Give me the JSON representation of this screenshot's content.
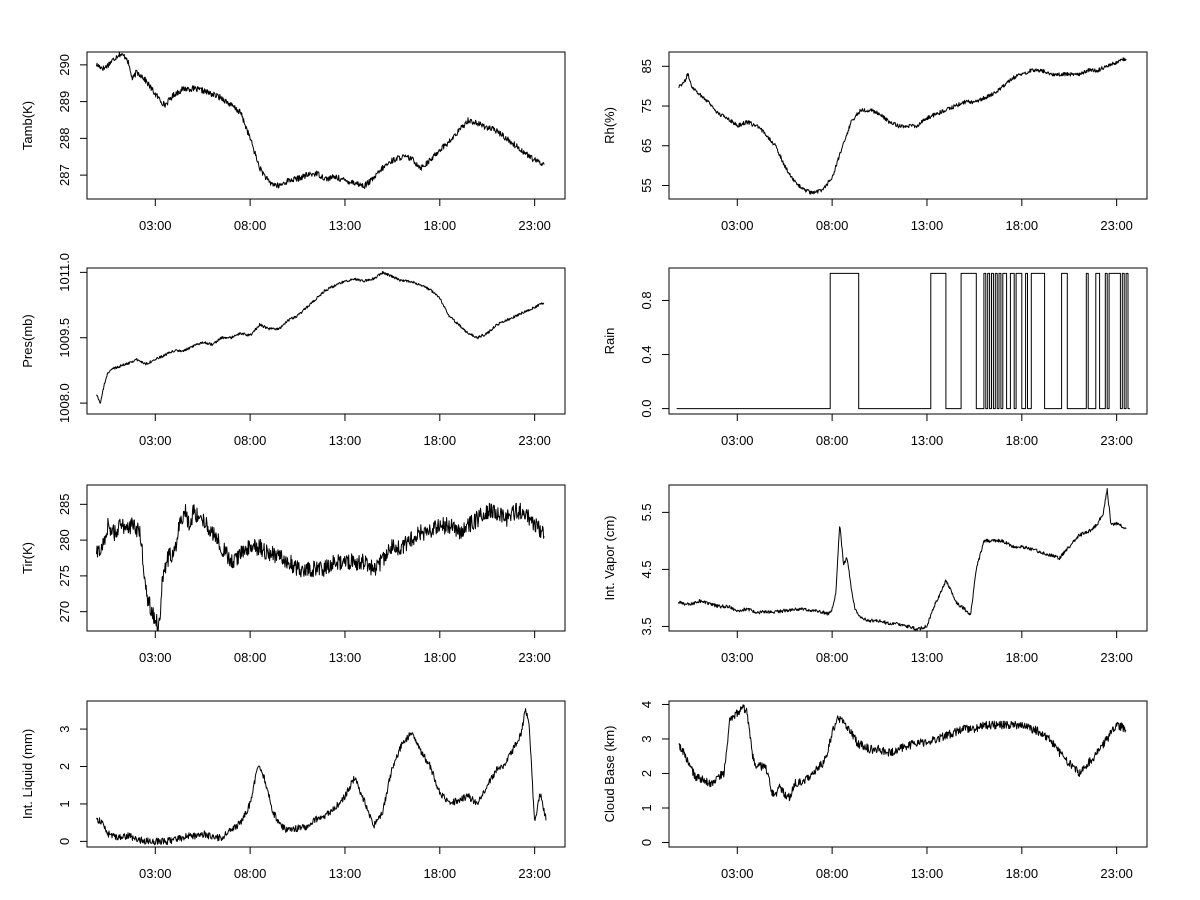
{
  "chart_data": [
    {
      "type": "line",
      "ylabel": "Tamb(K)",
      "xlabel": "",
      "xticks": [
        "03:00",
        "08:00",
        "13:00",
        "18:00",
        "23:00"
      ],
      "yticks": [
        287,
        288,
        289,
        290
      ],
      "ylim": [
        286.35,
        290.35
      ],
      "noise": 0.08,
      "series": [
        {
          "x": [
            -0.1,
            0.3,
            0.7,
            1.1,
            1.5,
            1.8,
            2.0,
            2.3,
            2.6,
            3.0,
            3.5,
            4.0,
            4.5,
            5.0,
            5.5,
            6.0,
            6.5,
            7.0,
            7.5,
            8.0,
            8.5,
            9.0,
            9.5,
            10.0,
            10.5,
            11.0,
            11.5,
            12.0,
            12.5,
            13.0,
            13.5,
            14.0,
            14.5,
            15.0,
            15.5,
            16.0,
            16.5,
            17.0,
            17.5,
            18.0,
            18.5,
            19.0,
            19.5,
            20.0,
            20.5,
            21.0,
            21.5,
            22.0,
            22.5,
            23.0,
            23.5
          ],
          "values": [
            290.0,
            289.9,
            290.1,
            290.3,
            290.2,
            289.6,
            289.8,
            289.7,
            289.5,
            289.2,
            288.9,
            289.2,
            289.35,
            289.35,
            289.3,
            289.2,
            289.1,
            288.9,
            288.7,
            288.0,
            287.2,
            286.8,
            286.7,
            286.85,
            286.9,
            287.0,
            287.05,
            286.9,
            286.95,
            286.85,
            286.8,
            286.7,
            286.9,
            287.2,
            287.4,
            287.5,
            287.45,
            287.2,
            287.4,
            287.7,
            287.9,
            288.2,
            288.5,
            288.4,
            288.3,
            288.2,
            288.0,
            287.8,
            287.6,
            287.4,
            287.3
          ]
        }
      ]
    },
    {
      "type": "line",
      "ylabel": "Rh(%)",
      "xlabel": "",
      "xticks": [
        "03:00",
        "08:00",
        "13:00",
        "18:00",
        "23:00"
      ],
      "yticks": [
        55,
        65,
        75,
        85
      ],
      "ylim": [
        51.6,
        88.6
      ],
      "noise": 0.5,
      "series": [
        {
          "x": [
            -0.1,
            0.2,
            0.4,
            0.6,
            1.0,
            1.5,
            2.0,
            2.5,
            3.0,
            3.5,
            4.0,
            4.5,
            5.0,
            5.5,
            6.0,
            6.5,
            7.0,
            7.5,
            8.0,
            8.5,
            9.0,
            9.5,
            10.0,
            10.5,
            11.0,
            11.5,
            12.0,
            12.5,
            13.0,
            13.5,
            14.0,
            14.5,
            15.0,
            15.5,
            16.0,
            16.5,
            17.0,
            17.5,
            18.0,
            18.5,
            19.0,
            19.5,
            20.0,
            20.5,
            21.0,
            21.5,
            22.0,
            22.5,
            23.0,
            23.5
          ],
          "values": [
            80,
            81,
            83,
            80,
            78,
            76,
            73,
            72,
            70,
            71,
            70,
            68,
            65,
            60,
            56,
            54,
            53,
            54,
            57,
            64,
            71,
            74,
            74,
            73,
            71,
            70,
            70,
            70,
            72,
            73,
            74,
            75,
            76,
            76,
            77,
            78,
            80,
            82,
            83,
            84,
            84,
            83,
            83,
            83,
            83,
            84,
            84,
            85,
            86,
            87
          ]
        }
      ]
    },
    {
      "type": "line",
      "ylabel": "Pres(mb)",
      "xlabel": "",
      "xticks": [
        "03:00",
        "08:00",
        "13:00",
        "18:00",
        "23:00"
      ],
      "yticks": [
        "1008.0",
        "1009.5",
        "1011.0"
      ],
      "ylim": [
        1007.75,
        1011.1
      ],
      "noise": 0.03,
      "series": [
        {
          "x": [
            -0.1,
            0.1,
            0.3,
            0.5,
            0.8,
            1.5,
            2.0,
            2.5,
            3.0,
            3.5,
            4.0,
            4.5,
            5.0,
            5.5,
            6.0,
            6.5,
            7.0,
            7.5,
            8.0,
            8.5,
            9.0,
            9.5,
            10.0,
            10.5,
            11.0,
            11.5,
            12.0,
            12.5,
            13.0,
            13.5,
            14.0,
            14.5,
            15.0,
            15.5,
            16.0,
            16.5,
            17.0,
            17.5,
            18.0,
            18.5,
            19.0,
            19.5,
            20.0,
            20.5,
            21.0,
            21.5,
            22.0,
            22.5,
            23.0,
            23.5
          ],
          "values": [
            1008.2,
            1008.0,
            1008.4,
            1008.7,
            1008.8,
            1008.9,
            1009.0,
            1008.9,
            1009.0,
            1009.1,
            1009.2,
            1009.2,
            1009.3,
            1009.4,
            1009.35,
            1009.5,
            1009.5,
            1009.6,
            1009.55,
            1009.8,
            1009.7,
            1009.7,
            1009.9,
            1010.0,
            1010.2,
            1010.4,
            1010.6,
            1010.7,
            1010.8,
            1010.85,
            1010.8,
            1010.85,
            1011.0,
            1010.9,
            1010.8,
            1010.8,
            1010.7,
            1010.6,
            1010.4,
            1010.0,
            1009.8,
            1009.6,
            1009.5,
            1009.6,
            1009.8,
            1009.9,
            1010.0,
            1010.1,
            1010.2,
            1010.3
          ]
        }
      ]
    },
    {
      "type": "line",
      "ylabel": "Rain",
      "xlabel": "",
      "xticks": [
        "03:00",
        "08:00",
        "13:00",
        "18:00",
        "23:00"
      ],
      "yticks": [
        "0.0",
        "0.4",
        "0.8"
      ],
      "ylim": [
        -0.04,
        1.04
      ],
      "noise": 0,
      "step": true,
      "series": [
        {
          "x": [
            -0.2,
            7.9,
            7.9,
            9.4,
            9.4,
            13.2,
            13.2,
            14.0,
            14.0,
            14.8,
            14.8,
            15.6,
            15.6,
            16.0,
            16.0,
            16.1,
            16.1,
            16.2,
            16.2,
            16.3,
            16.3,
            16.4,
            16.4,
            16.5,
            16.5,
            16.6,
            16.6,
            16.7,
            16.7,
            16.8,
            16.8,
            16.9,
            16.9,
            17.0,
            17.0,
            17.2,
            17.2,
            17.4,
            17.4,
            17.6,
            17.6,
            17.7,
            17.7,
            18.0,
            18.0,
            18.2,
            18.2,
            18.3,
            18.3,
            18.5,
            18.5,
            19.2,
            19.2,
            20.1,
            20.1,
            20.4,
            20.4,
            21.4,
            21.4,
            21.5,
            21.5,
            21.9,
            21.9,
            22.1,
            22.1,
            22.4,
            22.4,
            22.5,
            22.5,
            22.6,
            22.6,
            23.2,
            23.2,
            23.3,
            23.3,
            23.4,
            23.4,
            23.5,
            23.5,
            23.6,
            23.6,
            23.7
          ],
          "values": [
            0,
            0,
            1,
            1,
            0,
            0,
            1,
            1,
            0,
            0,
            1,
            1,
            0,
            0,
            1,
            1,
            0,
            0,
            1,
            1,
            0,
            0,
            1,
            1,
            0,
            0,
            1,
            1,
            0,
            0,
            1,
            1,
            0,
            0,
            1,
            1,
            0,
            0,
            1,
            1,
            0,
            0,
            1,
            1,
            0,
            0,
            1,
            1,
            0,
            0,
            1,
            1,
            0,
            0,
            1,
            1,
            0,
            0,
            1,
            1,
            0,
            0,
            1,
            1,
            0,
            0,
            1,
            1,
            0,
            0,
            1,
            1,
            0,
            0,
            1,
            1,
            0,
            0,
            1,
            1,
            0,
            0
          ]
        }
      ]
    },
    {
      "type": "line",
      "ylabel": "Tir(K)",
      "xlabel": "",
      "xticks": [
        "03:00",
        "08:00",
        "13:00",
        "18:00",
        "23:00"
      ],
      "yticks": [
        270,
        275,
        280,
        285
      ],
      "ylim": [
        267.3,
        287.7
      ],
      "noise": 1.2,
      "series": [
        {
          "x": [
            -0.1,
            0.2,
            0.5,
            0.8,
            1.2,
            1.8,
            2.2,
            2.4,
            2.6,
            2.8,
            3.0,
            3.2,
            3.4,
            3.6,
            3.8,
            4.0,
            4.3,
            4.6,
            4.8,
            5.0,
            5.5,
            6.0,
            6.5,
            7.0,
            7.5,
            8.0,
            8.5,
            9.0,
            9.5,
            10.0,
            10.5,
            11.0,
            11.5,
            12.0,
            12.5,
            13.0,
            13.5,
            14.0,
            14.5,
            15.0,
            15.5,
            16.0,
            16.5,
            17.0,
            17.5,
            18.0,
            18.5,
            19.0,
            19.5,
            20.0,
            20.5,
            21.0,
            21.5,
            22.0,
            22.5,
            23.0,
            23.5
          ],
          "values": [
            278,
            279,
            282,
            281,
            282,
            282,
            281,
            276,
            272,
            270,
            269,
            268,
            275,
            277,
            278,
            278,
            283,
            284,
            282,
            284,
            283,
            281,
            279,
            277,
            278,
            279,
            279,
            278,
            278,
            277,
            276,
            276,
            276,
            276,
            277,
            277,
            277,
            277,
            276,
            277,
            279,
            279,
            280,
            281,
            281,
            282,
            282,
            281,
            282,
            283,
            284,
            284,
            283,
            284,
            284,
            282,
            281
          ]
        }
      ]
    },
    {
      "type": "line",
      "ylabel": "Int. Vapor (cm)",
      "xlabel": "",
      "xticks": [
        "03:00",
        "08:00",
        "13:00",
        "18:00",
        "23:00"
      ],
      "yticks": [
        "3.5",
        "4.5",
        "5.5"
      ],
      "ylim": [
        3.42,
        5.98
      ],
      "noise": 0.03,
      "series": [
        {
          "x": [
            -0.1,
            0.5,
            1.0,
            1.5,
            2.0,
            2.5,
            3.0,
            3.5,
            4.0,
            4.5,
            5.0,
            5.5,
            6.0,
            6.5,
            7.0,
            7.5,
            7.8,
            8.0,
            8.2,
            8.4,
            8.6,
            8.8,
            9.0,
            9.2,
            9.5,
            10.0,
            10.5,
            11.0,
            11.5,
            12.0,
            12.5,
            13.0,
            13.3,
            13.6,
            14.0,
            14.3,
            14.6,
            15.0,
            15.3,
            15.6,
            16.0,
            16.5,
            17.0,
            17.5,
            18.0,
            18.5,
            19.0,
            19.5,
            20.0,
            20.5,
            21.0,
            21.5,
            22.0,
            22.3,
            22.5,
            22.7,
            23.0,
            23.5
          ],
          "values": [
            3.92,
            3.88,
            3.95,
            3.9,
            3.85,
            3.85,
            3.78,
            3.8,
            3.75,
            3.75,
            3.75,
            3.78,
            3.8,
            3.8,
            3.78,
            3.75,
            3.72,
            3.8,
            4.1,
            5.3,
            4.6,
            4.7,
            4.2,
            3.8,
            3.65,
            3.6,
            3.6,
            3.55,
            3.55,
            3.5,
            3.45,
            3.5,
            3.8,
            4.0,
            4.3,
            4.1,
            3.9,
            3.8,
            3.7,
            4.5,
            5.0,
            5.0,
            5.0,
            4.9,
            4.9,
            4.85,
            4.8,
            4.75,
            4.7,
            4.9,
            5.1,
            5.15,
            5.3,
            5.5,
            5.9,
            5.3,
            5.3,
            5.22
          ]
        }
      ]
    },
    {
      "type": "line",
      "ylabel": "Int. Liquid (mm)",
      "xlabel": "",
      "xticks": [
        "03:00",
        "08:00",
        "13:00",
        "18:00",
        "23:00"
      ],
      "yticks": [
        0,
        1,
        2,
        3
      ],
      "ylim": [
        -0.15,
        3.75
      ],
      "noise": 0.09,
      "series": [
        {
          "x": [
            -0.1,
            0.2,
            0.5,
            0.8,
            1.2,
            1.6,
            2.0,
            2.4,
            2.8,
            3.2,
            3.6,
            4.0,
            4.4,
            4.8,
            5.2,
            5.6,
            6.0,
            6.5,
            7.0,
            7.5,
            8.0,
            8.2,
            8.4,
            8.6,
            8.8,
            9.2,
            9.6,
            10.0,
            10.5,
            11.0,
            11.5,
            12.0,
            12.5,
            13.0,
            13.5,
            14.0,
            14.5,
            15.0,
            15.5,
            16.0,
            16.5,
            17.0,
            17.5,
            18.0,
            18.5,
            19.0,
            19.5,
            20.0,
            20.5,
            21.0,
            21.5,
            22.0,
            22.3,
            22.5,
            22.7,
            23.0,
            23.3,
            23.6
          ],
          "values": [
            0.6,
            0.5,
            0.2,
            0.15,
            0.1,
            0.15,
            0.05,
            0.02,
            0.0,
            0.0,
            0.0,
            0.05,
            0.1,
            0.15,
            0.15,
            0.2,
            0.1,
            0.1,
            0.3,
            0.5,
            1.0,
            1.5,
            2.0,
            1.9,
            1.6,
            0.8,
            0.4,
            0.3,
            0.35,
            0.4,
            0.6,
            0.7,
            0.9,
            1.2,
            1.7,
            1.1,
            0.4,
            0.8,
            2.0,
            2.6,
            2.9,
            2.4,
            2.0,
            1.3,
            1.0,
            1.1,
            1.2,
            1.0,
            1.5,
            1.9,
            2.1,
            2.6,
            2.9,
            3.5,
            3.2,
            0.5,
            1.3,
            0.6
          ]
        }
      ]
    },
    {
      "type": "line",
      "ylabel": "Cloud Base (km)",
      "xlabel": "",
      "xticks": [
        "03:00",
        "08:00",
        "13:00",
        "18:00",
        "23:00"
      ],
      "yticks": [
        0,
        1,
        2,
        3,
        4
      ],
      "ylim": [
        -0.13,
        4.1
      ],
      "noise": 0.12,
      "series": [
        {
          "x": [
            -0.1,
            0.2,
            0.5,
            0.8,
            1.2,
            1.6,
            2.0,
            2.3,
            2.6,
            2.9,
            3.1,
            3.3,
            3.5,
            3.8,
            4.0,
            4.2,
            4.5,
            4.8,
            5.0,
            5.2,
            5.5,
            5.8,
            6.0,
            6.5,
            7.0,
            7.5,
            7.8,
            8.0,
            8.3,
            8.6,
            9.0,
            9.3,
            9.6,
            10.0,
            10.5,
            11.0,
            11.5,
            12.0,
            12.5,
            13.0,
            13.5,
            14.0,
            14.5,
            15.0,
            15.5,
            16.0,
            16.5,
            17.0,
            17.5,
            18.0,
            18.5,
            19.0,
            19.5,
            20.0,
            20.5,
            21.0,
            21.5,
            22.0,
            22.5,
            23.0,
            23.5
          ],
          "values": [
            2.8,
            2.6,
            2.2,
            1.9,
            1.8,
            1.7,
            1.9,
            2.0,
            3.5,
            3.7,
            3.8,
            3.9,
            3.8,
            2.5,
            2.2,
            2.2,
            2.2,
            1.5,
            1.3,
            1.6,
            1.4,
            1.3,
            1.7,
            1.8,
            2.0,
            2.3,
            2.7,
            3.2,
            3.6,
            3.5,
            3.2,
            2.9,
            2.8,
            2.7,
            2.7,
            2.6,
            2.7,
            2.8,
            2.9,
            2.9,
            3.0,
            3.1,
            3.2,
            3.3,
            3.3,
            3.4,
            3.4,
            3.4,
            3.4,
            3.4,
            3.3,
            3.2,
            3.0,
            2.6,
            2.3,
            2.0,
            2.3,
            2.6,
            3.0,
            3.4,
            3.3
          ]
        }
      ]
    }
  ]
}
